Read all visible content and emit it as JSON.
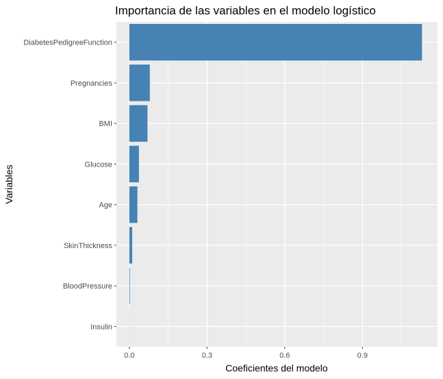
{
  "chart_data": {
    "type": "bar",
    "orientation": "horizontal",
    "title": "Importancia de las variables en el modelo logístico",
    "xlabel": "Coeficientes del modelo",
    "ylabel": "Variables",
    "categories": [
      "DiabetesPedigreeFunction",
      "Pregnancies",
      "BMI",
      "Glucose",
      "Age",
      "SkinThickness",
      "BloodPressure",
      "Insulin"
    ],
    "values": [
      1.13,
      0.079,
      0.07,
      0.037,
      0.031,
      0.011,
      0.002,
      0.0005
    ],
    "xlim": [
      -0.05,
      1.19
    ],
    "xticks": [
      "0.0",
      "0.3",
      "0.6",
      "0.9"
    ],
    "xtick_values": [
      0,
      0.3,
      0.6,
      0.9
    ],
    "grid": true,
    "panel_background": "#ebebeb",
    "bar_color": "#4682b4",
    "grid_color": "#ffffff"
  }
}
